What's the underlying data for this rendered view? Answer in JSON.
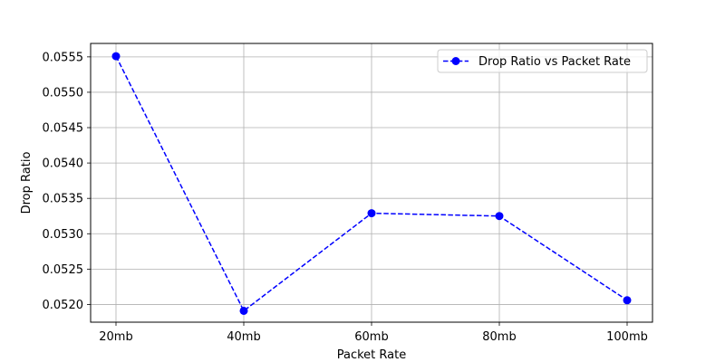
{
  "chart_data": {
    "type": "line",
    "categories": [
      "20mb",
      "40mb",
      "60mb",
      "80mb",
      "100mb"
    ],
    "series": [
      {
        "name": "Drop Ratio vs Packet Rate",
        "values": [
          0.05551,
          0.05191,
          0.05329,
          0.05325,
          0.05206
        ],
        "color": "#0000ff",
        "line_style": "dashed",
        "marker": "circle"
      }
    ],
    "xlabel": "Packet Rate",
    "ylabel": "Drop Ratio",
    "ylim": [
      0.05175,
      0.05569
    ],
    "yticks": [
      "0.0520",
      "0.0525",
      "0.0530",
      "0.0535",
      "0.0540",
      "0.0545",
      "0.0550",
      "0.0555"
    ],
    "grid": true,
    "legend_position": "top-right"
  }
}
